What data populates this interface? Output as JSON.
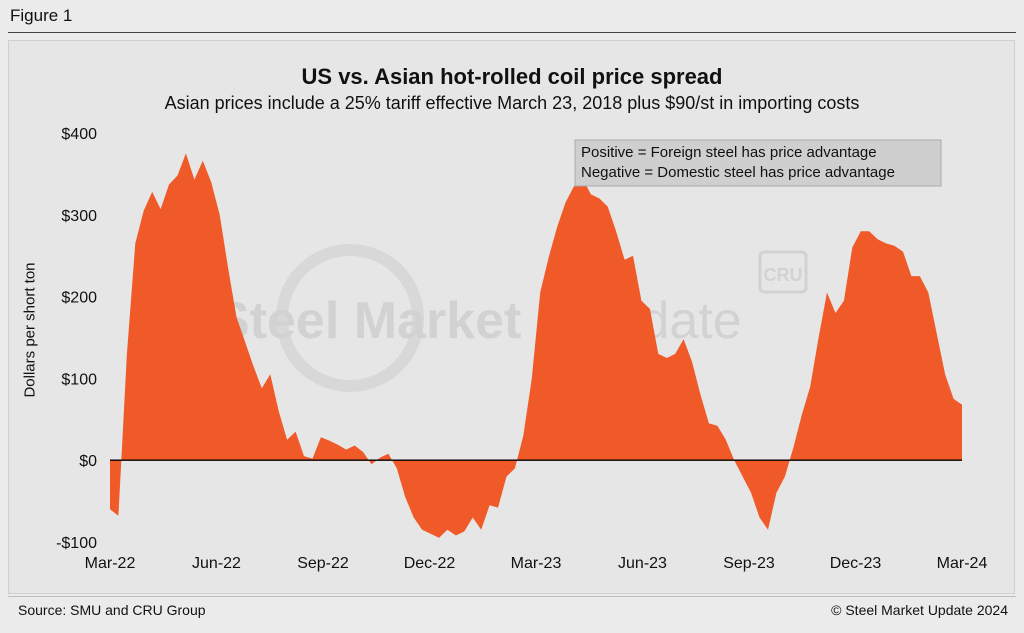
{
  "figure_label": "Figure 1",
  "source": "Source: SMU and CRU Group",
  "copyright": "© Steel Market Update 2024",
  "watermark": {
    "text_bold": "Steel Market",
    "text_light": "Update",
    "badge": "CRU"
  },
  "colors": {
    "fill": "#f05a28",
    "zero_line": "#000000",
    "background": "#e6e6e6"
  },
  "chart_data": {
    "type": "area",
    "title": "US vs. Asian hot-rolled coil price spread",
    "subtitle": "Asian prices include a 25% tariff effective March 23, 2018 plus $90/st in importing costs",
    "xlabel": "",
    "ylabel": "Dollars per short ton",
    "ylim": [
      -100,
      400
    ],
    "yticks": [
      400,
      300,
      200,
      100,
      0,
      -100
    ],
    "ytick_labels": [
      "$400",
      "$300",
      "$200",
      "$100",
      "$0",
      "-$100"
    ],
    "xticks": [
      0,
      13,
      26,
      39,
      52,
      65,
      78,
      91,
      104
    ],
    "xtick_labels": [
      "Mar-22",
      "Jun-22",
      "Sep-22",
      "Dec-22",
      "Mar-23",
      "Jun-23",
      "Sep-23",
      "Dec-23",
      "Mar-24"
    ],
    "x_unit": "weeks since Mar-22",
    "legend": {
      "position": "top-right",
      "lines": [
        "Positive = Foreign steel has price advantage",
        "Negative = Domestic steel has price advantage"
      ]
    },
    "series": [
      {
        "name": "Price spread",
        "values": [
          -60,
          -68,
          130,
          265,
          305,
          328,
          307,
          337,
          348,
          375,
          343,
          366,
          340,
          300,
          235,
          175,
          145,
          115,
          88,
          105,
          60,
          25,
          35,
          5,
          2,
          28,
          24,
          19,
          13,
          18,
          10,
          -5,
          3,
          8,
          -10,
          -45,
          -70,
          -85,
          -90,
          -95,
          -85,
          -92,
          -87,
          -70,
          -85,
          -55,
          -58,
          -20,
          -10,
          30,
          100,
          205,
          248,
          285,
          315,
          335,
          345,
          325,
          320,
          310,
          280,
          245,
          250,
          195,
          185,
          130,
          125,
          130,
          148,
          120,
          80,
          45,
          42,
          25,
          0,
          -20,
          -40,
          -70,
          -85,
          -40,
          -20,
          15,
          55,
          90,
          150,
          205,
          180,
          195,
          260,
          280,
          280,
          270,
          265,
          262,
          255,
          225,
          225,
          205,
          155,
          105,
          75,
          68
        ]
      }
    ]
  }
}
